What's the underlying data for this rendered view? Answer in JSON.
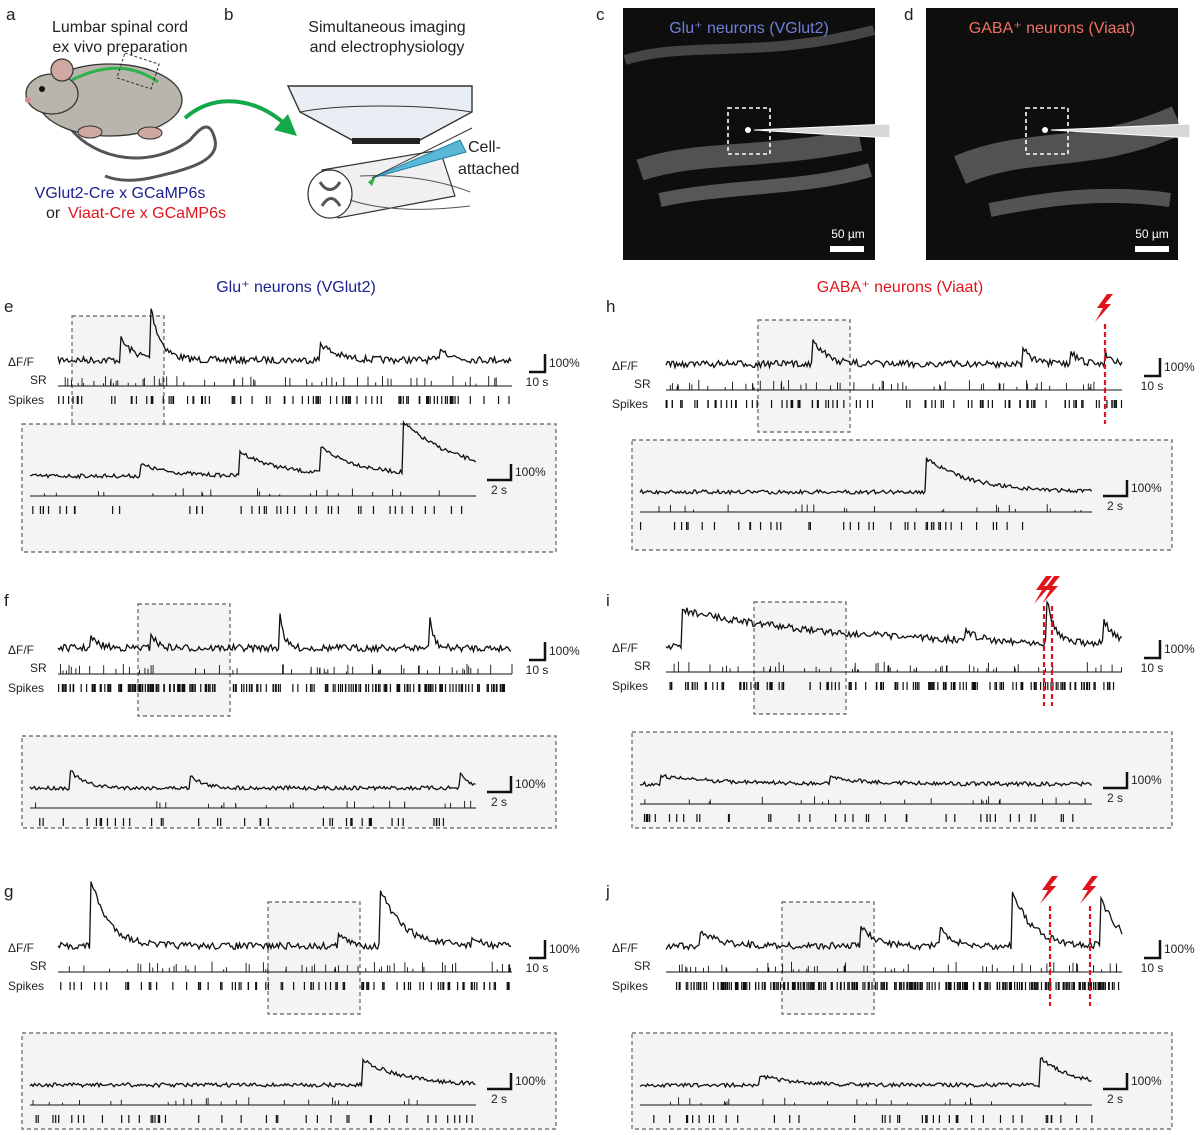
{
  "figure": {
    "panel_letters": [
      "a",
      "b",
      "c",
      "d",
      "e",
      "f",
      "g",
      "h",
      "i",
      "j"
    ],
    "panel_a": {
      "title_line1": "Lumbar spinal cord",
      "title_line2": "ex vivo preparation",
      "genotype1": "VGlut2-Cre x GCaMP6s",
      "genotype2_prefix": "or ",
      "genotype2": "Viaat-Cre x GCaMP6s"
    },
    "panel_b": {
      "title_line1": "Simultaneous imaging",
      "title_line2": "and electrophysiology",
      "recording_line1": "Cell-",
      "recording_line2": "attached"
    },
    "panel_c": {
      "title": "Glu⁺ neurons (VGlut2)",
      "scale_bar": "50 µm"
    },
    "panel_d": {
      "title": "GABA⁺ neurons (Viaat)",
      "scale_bar": "50 µm"
    },
    "left_column_title": "Glu⁺ neurons (VGlut2)",
    "right_column_title": "GABA⁺ neurons (Viaat)",
    "row_labels": {
      "dff": "ΔF/F",
      "sr": "SR",
      "spikes": "Spikes"
    },
    "scale": {
      "amplitude": "100%",
      "time_long": "10 s",
      "time_short": "2 s"
    },
    "colors": {
      "glu_text": "#1a1f8c",
      "gaba_text": "#e0141b",
      "stim": "#e0141b",
      "mouse_path": "#2db34a"
    }
  }
}
